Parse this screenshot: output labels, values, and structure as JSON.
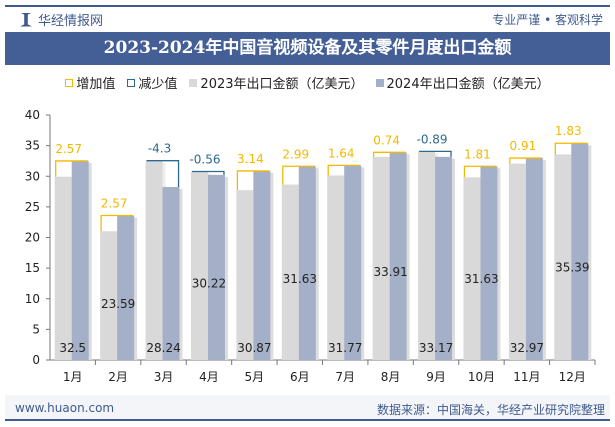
{
  "header": {
    "brand": "华经情报网",
    "slogan": "专业严谨 • 客观科学"
  },
  "footer": {
    "url": "www.huaon.com",
    "source": "数据来源：中国海关，华经产业研究院整理"
  },
  "colors": {
    "increase": "#f5b800",
    "decrease": "#2e6a8e",
    "y2023": "#d9d9d9",
    "y2024": "#a4b0c8"
  },
  "chart_data": {
    "type": "bar",
    "title": "2023-2024年中国音视频设备及其零件月度出口金额",
    "legend": [
      "增加值",
      "减少值",
      "2023年出口金额（亿美元）",
      "2024年出口金额（亿美元）"
    ],
    "legend_position": "top",
    "categories": [
      "1月",
      "2月",
      "3月",
      "4月",
      "5月",
      "6月",
      "7月",
      "8月",
      "9月",
      "10月",
      "11月",
      "12月"
    ],
    "series": [
      {
        "name": "2023年出口金额（亿美元）",
        "values": [
          29.93,
          21.02,
          32.54,
          30.78,
          27.73,
          28.64,
          30.13,
          33.17,
          34.06,
          29.82,
          32.06,
          33.56
        ]
      },
      {
        "name": "2024年出口金额（亿美元）",
        "values": [
          32.5,
          23.59,
          28.24,
          30.22,
          30.87,
          31.63,
          31.77,
          33.91,
          33.17,
          31.63,
          32.97,
          35.39
        ]
      }
    ],
    "change_labels": [
      "2.57",
      "2.57",
      "-4.3",
      "-0.56",
      "3.14",
      "2.99",
      "1.64",
      "0.74",
      "-0.89",
      "1.81",
      "0.91",
      "1.83"
    ],
    "value_labels": [
      "32.5",
      "23.59",
      "28.24",
      "30.22",
      "30.87",
      "31.63",
      "31.77",
      "33.91",
      "33.17",
      "31.63",
      "32.97",
      "35.39"
    ],
    "ylim": [
      0,
      40
    ],
    "yticks": [
      "0",
      "5",
      "10",
      "15",
      "20",
      "25",
      "30",
      "35",
      "40"
    ],
    "grid": false
  }
}
